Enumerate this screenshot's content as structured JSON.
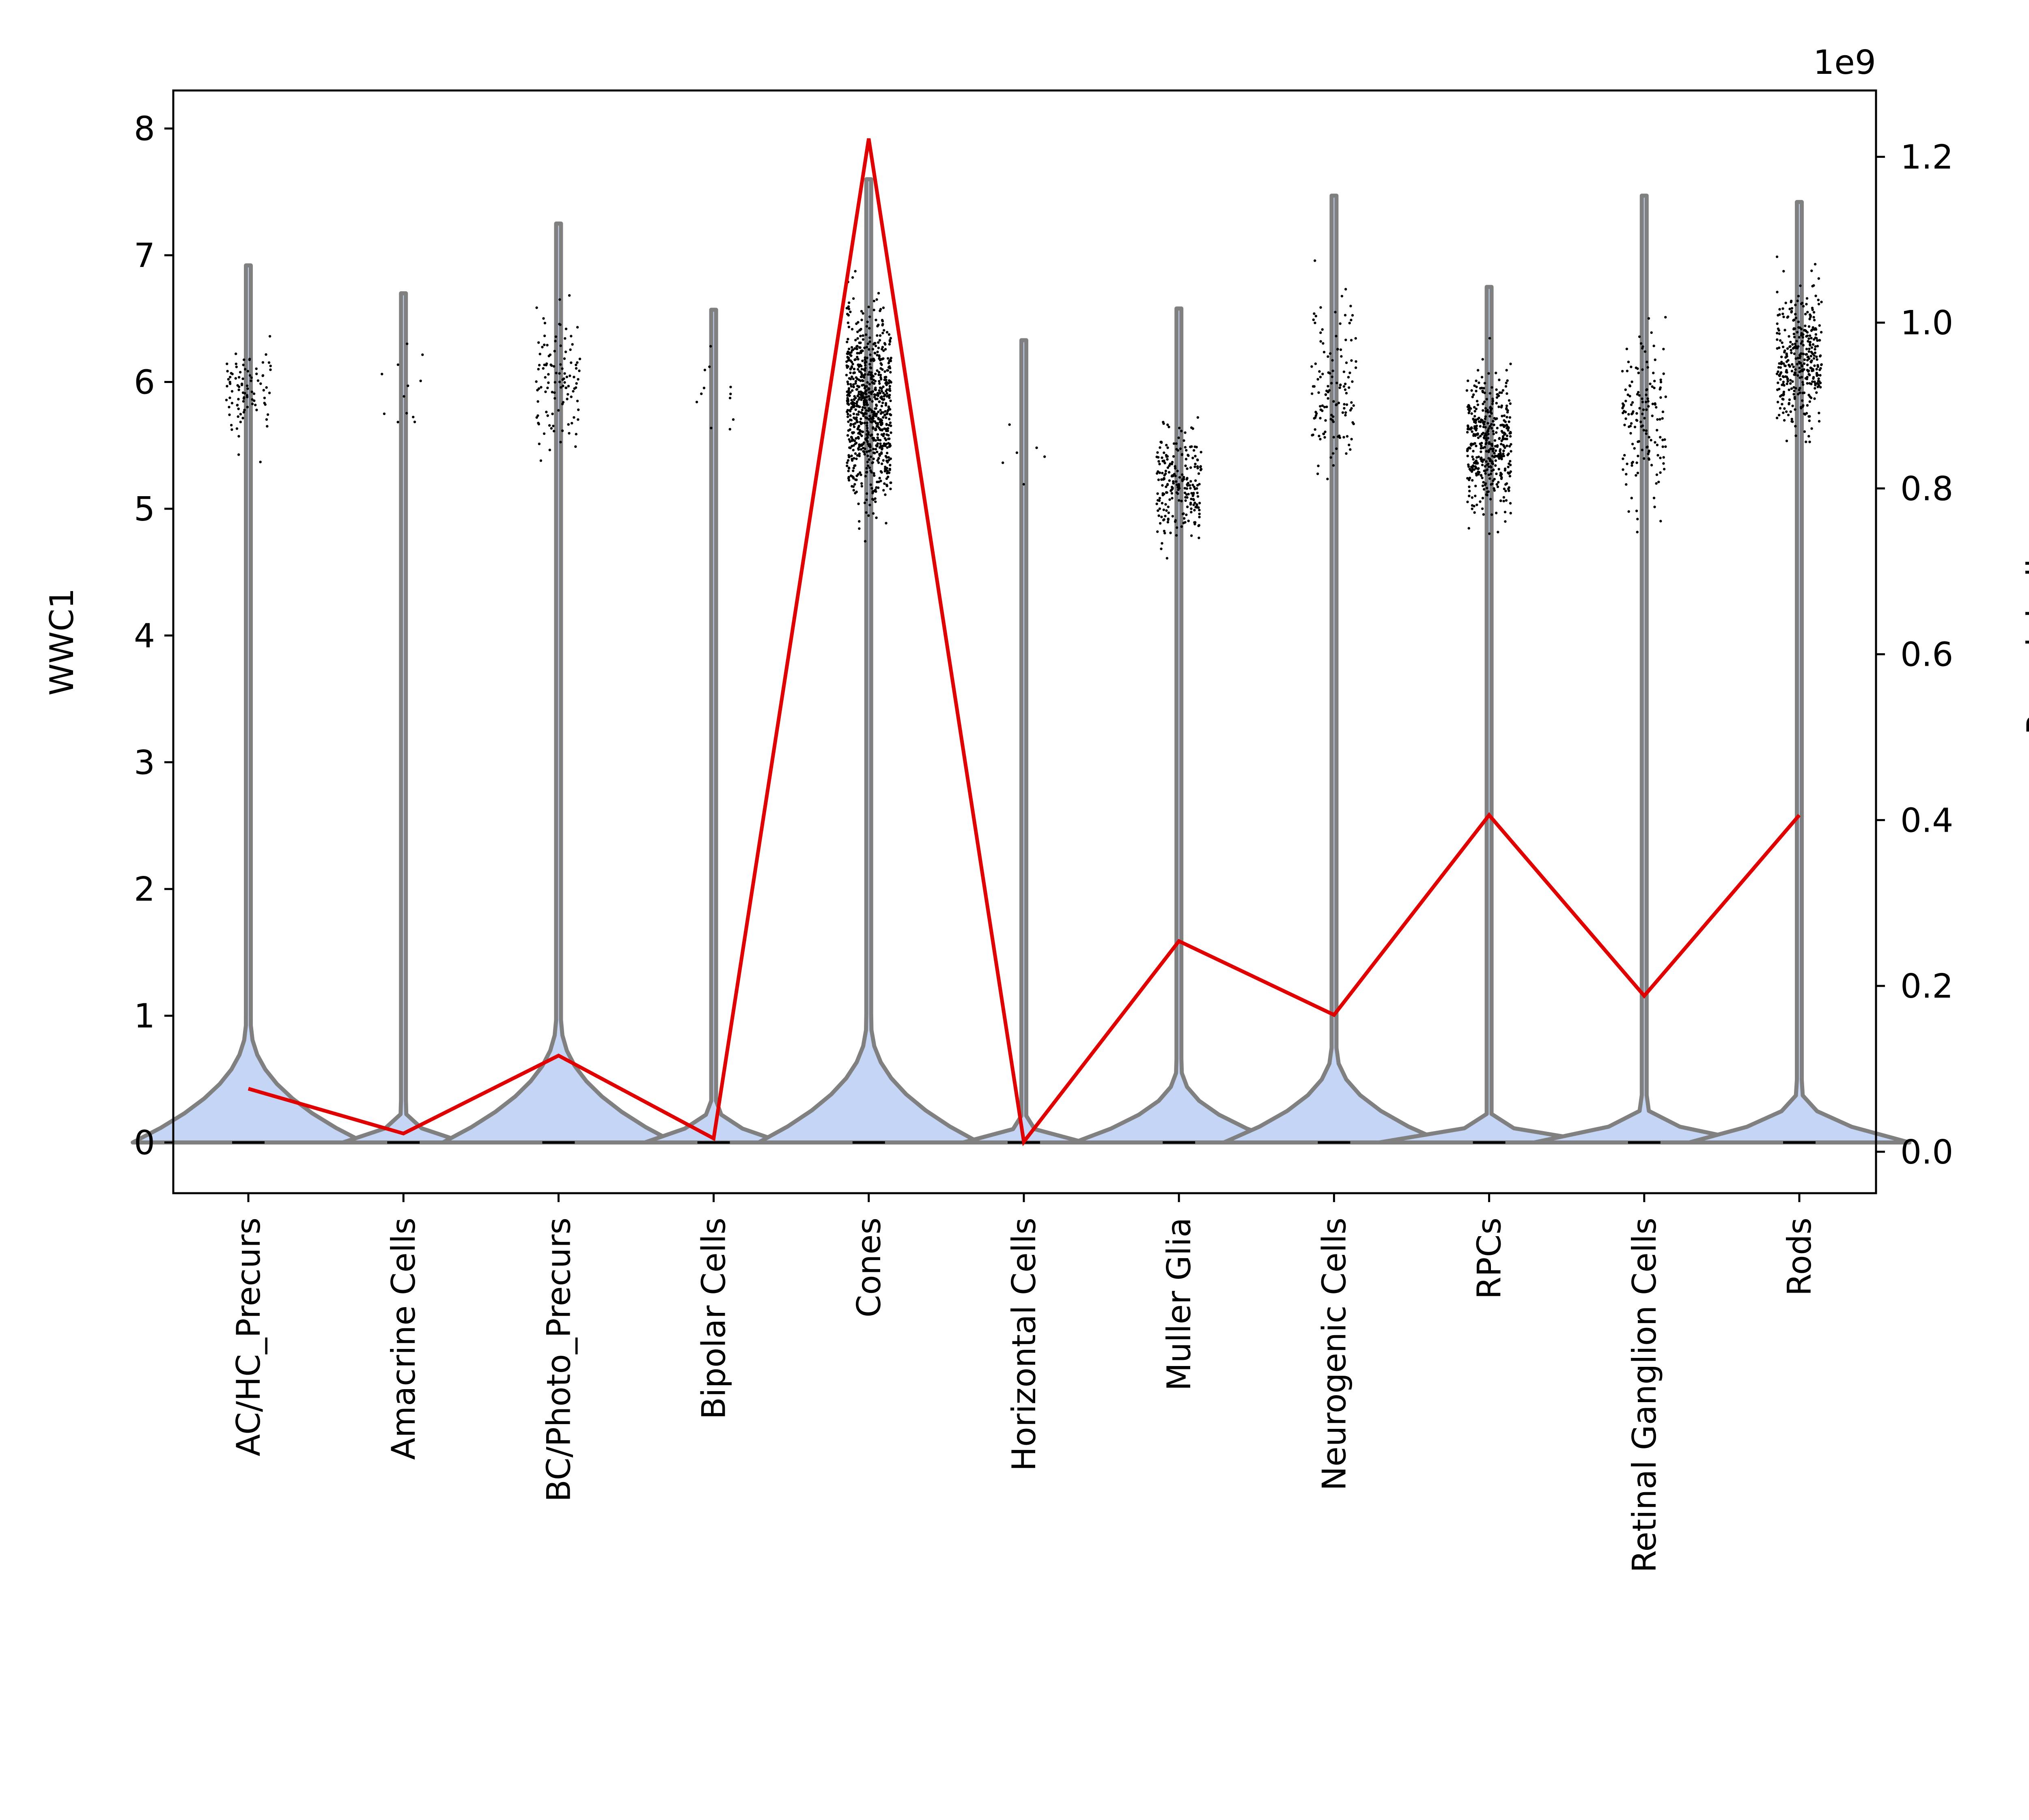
{
  "chart_data": {
    "type": "violin",
    "ylabel_left": "WWC1",
    "ylabel_right": "Pseudobulk",
    "right_offset_label": "1e9",
    "ylim_left": [
      -0.4,
      8.3
    ],
    "ylim_right": [
      -0.05,
      1.28
    ],
    "yticks_left": [
      0,
      1,
      2,
      3,
      4,
      5,
      6,
      7,
      8
    ],
    "yticks_right": [
      0.0,
      0.2,
      0.4,
      0.6,
      0.8,
      1.0,
      1.2
    ],
    "yticklabels_left": [
      "0",
      "1",
      "2",
      "3",
      "4",
      "5",
      "6",
      "7",
      "8"
    ],
    "yticklabels_right": [
      "0.0",
      "0.2",
      "0.4",
      "0.6",
      "0.8",
      "1.0",
      "1.2"
    ],
    "categories": [
      "AC/HC_Precurs",
      "Amacrine Cells",
      "BC/Photo_Precurs",
      "Bipolar Cells",
      "Cones",
      "Horizontal Cells",
      "Muller Glia",
      "Neurogenic Cells",
      "RPCs",
      "Retinal Ganglion Cells",
      "Rods"
    ],
    "violin_max": [
      6.92,
      6.7,
      7.25,
      6.57,
      7.6,
      6.33,
      6.58,
      7.47,
      6.75,
      7.47,
      7.42
    ],
    "violin_half_width_at_zero": [
      0.42,
      0.22,
      0.42,
      0.25,
      0.4,
      0.22,
      0.38,
      0.4,
      0.4,
      0.4,
      0.4
    ],
    "violin_bulge_top": [
      0.95,
      0.25,
      0.98,
      0.32,
      0.95,
      0.18,
      0.6,
      0.75,
      0.22,
      0.3,
      0.42
    ],
    "points_range": [
      [
        5.2,
        6.8
      ],
      [
        5.0,
        6.7
      ],
      [
        5.0,
        7.2
      ],
      [
        4.9,
        6.5
      ],
      [
        4.7,
        7.6
      ],
      [
        4.7,
        6.0
      ],
      [
        4.6,
        6.3
      ],
      [
        4.7,
        7.3
      ],
      [
        4.6,
        6.8
      ],
      [
        4.6,
        7.4
      ],
      [
        5.0,
        7.2
      ]
    ],
    "points_center": [
      5.9,
      6.0,
      6.0,
      5.9,
      5.8,
      5.5,
      5.2,
      6.0,
      5.5,
      5.7,
      6.2
    ],
    "points_count": [
      90,
      12,
      110,
      12,
      800,
      6,
      230,
      130,
      420,
      150,
      360
    ],
    "pseudobulk_series": [
      0.076,
      0.022,
      0.116,
      0.016,
      1.222,
      0.012,
      0.254,
      0.165,
      0.406,
      0.188,
      0.406
    ],
    "violin_fill": "#c5d5f5",
    "violin_edge": "#808080",
    "line_color": "#e00000",
    "point_color": "#000000",
    "grid": false
  }
}
